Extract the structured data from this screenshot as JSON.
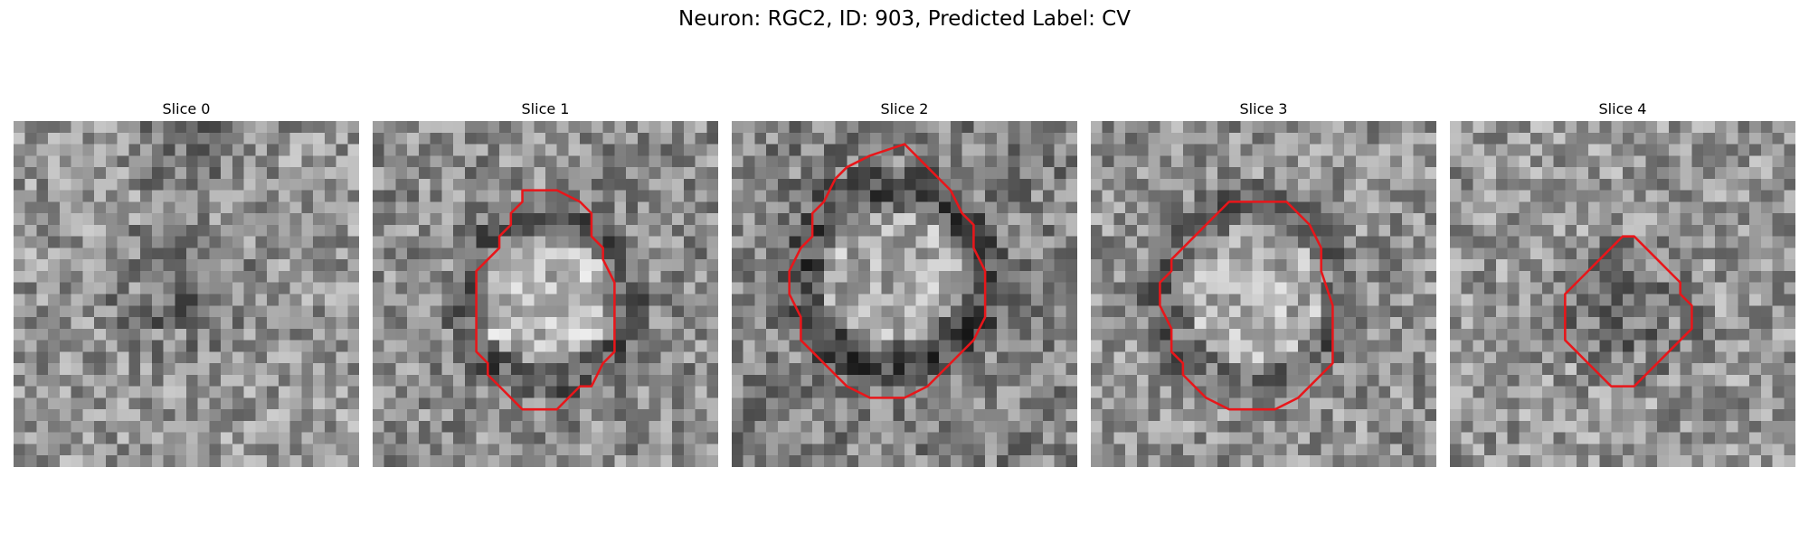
{
  "figure": {
    "title": "Neuron: RGC2, ID: 903, Predicted Label: CV"
  },
  "panels": [
    {
      "title": "Slice 0",
      "contour": null
    },
    {
      "title": "Slice 1",
      "contour": [
        [
          13,
          6
        ],
        [
          16,
          6
        ],
        [
          18,
          7
        ],
        [
          19,
          8
        ],
        [
          19,
          10
        ],
        [
          20,
          11
        ],
        [
          20,
          12
        ],
        [
          21,
          14
        ],
        [
          21,
          17
        ],
        [
          21,
          20
        ],
        [
          20,
          21
        ],
        [
          19,
          23
        ],
        [
          18,
          23
        ],
        [
          17,
          24
        ],
        [
          16,
          25
        ],
        [
          14,
          25
        ],
        [
          13,
          25
        ],
        [
          12,
          24
        ],
        [
          11,
          23
        ],
        [
          10,
          22
        ],
        [
          10,
          21
        ],
        [
          9,
          20
        ],
        [
          9,
          18
        ],
        [
          9,
          16
        ],
        [
          9,
          14
        ],
        [
          9,
          13
        ],
        [
          10,
          12
        ],
        [
          11,
          11
        ],
        [
          11,
          10
        ],
        [
          12,
          9
        ],
        [
          12,
          8
        ],
        [
          13,
          7
        ]
      ]
    },
    {
      "title": "Slice 2",
      "contour": [
        [
          12,
          3
        ],
        [
          15,
          2
        ],
        [
          17,
          4
        ],
        [
          19,
          6
        ],
        [
          20,
          8
        ],
        [
          21,
          9
        ],
        [
          21,
          11
        ],
        [
          22,
          13
        ],
        [
          22,
          15
        ],
        [
          22,
          17
        ],
        [
          21,
          19
        ],
        [
          20,
          20
        ],
        [
          19,
          21
        ],
        [
          18,
          22
        ],
        [
          17,
          23
        ],
        [
          15,
          24
        ],
        [
          12,
          24
        ],
        [
          10,
          23
        ],
        [
          9,
          22
        ],
        [
          8,
          21
        ],
        [
          7,
          20
        ],
        [
          6,
          19
        ],
        [
          6,
          17
        ],
        [
          5,
          15
        ],
        [
          5,
          13
        ],
        [
          6,
          11
        ],
        [
          7,
          10
        ],
        [
          7,
          8
        ],
        [
          8,
          7
        ],
        [
          9,
          5
        ],
        [
          10,
          4
        ]
      ]
    },
    {
      "title": "Slice 3",
      "contour": [
        [
          12,
          7
        ],
        [
          17,
          7
        ],
        [
          19,
          9
        ],
        [
          20,
          11
        ],
        [
          20,
          13
        ],
        [
          21,
          16
        ],
        [
          21,
          19
        ],
        [
          21,
          21
        ],
        [
          20,
          22
        ],
        [
          19,
          23
        ],
        [
          18,
          24
        ],
        [
          16,
          25
        ],
        [
          12,
          25
        ],
        [
          10,
          24
        ],
        [
          9,
          23
        ],
        [
          8,
          22
        ],
        [
          8,
          21
        ],
        [
          7,
          20
        ],
        [
          7,
          18
        ],
        [
          6,
          16
        ],
        [
          6,
          14
        ],
        [
          7,
          13
        ],
        [
          7,
          12
        ],
        [
          8,
          11
        ],
        [
          9,
          10
        ],
        [
          10,
          9
        ],
        [
          11,
          8
        ]
      ]
    },
    {
      "title": "Slice 4",
      "contour": [
        [
          15,
          10
        ],
        [
          16,
          10
        ],
        [
          17,
          11
        ],
        [
          18,
          12
        ],
        [
          19,
          13
        ],
        [
          20,
          14
        ],
        [
          20,
          15
        ],
        [
          21,
          16
        ],
        [
          21,
          18
        ],
        [
          20,
          19
        ],
        [
          19,
          20
        ],
        [
          18,
          21
        ],
        [
          17,
          22
        ],
        [
          16,
          23
        ],
        [
          14,
          23
        ],
        [
          13,
          22
        ],
        [
          12,
          21
        ],
        [
          11,
          20
        ],
        [
          10,
          19
        ],
        [
          10,
          17
        ],
        [
          10,
          15
        ],
        [
          11,
          14
        ],
        [
          12,
          13
        ],
        [
          13,
          12
        ],
        [
          14,
          11
        ]
      ]
    }
  ],
  "colors": {
    "contour": "#e8161a"
  }
}
